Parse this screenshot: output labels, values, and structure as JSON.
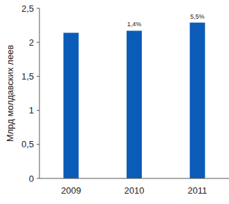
{
  "chart_data": {
    "type": "bar",
    "y_label": "Млрд молдавских леев",
    "categories": [
      "2009",
      "2010",
      "2011"
    ],
    "values": [
      2.14,
      2.17,
      2.29
    ],
    "color": "#0b5cb8",
    "ylim": [
      0,
      2.5
    ],
    "yticks": [
      0,
      {
        "value": 0.5,
        "label": "0,5"
      },
      1,
      {
        "value": 1.5,
        "label": "1,5"
      },
      2,
      {
        "value": 2.5,
        "label": "2,5"
      }
    ],
    "grid": false,
    "annotations": [
      {
        "category": "2010",
        "text": "1,4%"
      },
      {
        "category": "2011",
        "text": "5,5%"
      }
    ]
  }
}
